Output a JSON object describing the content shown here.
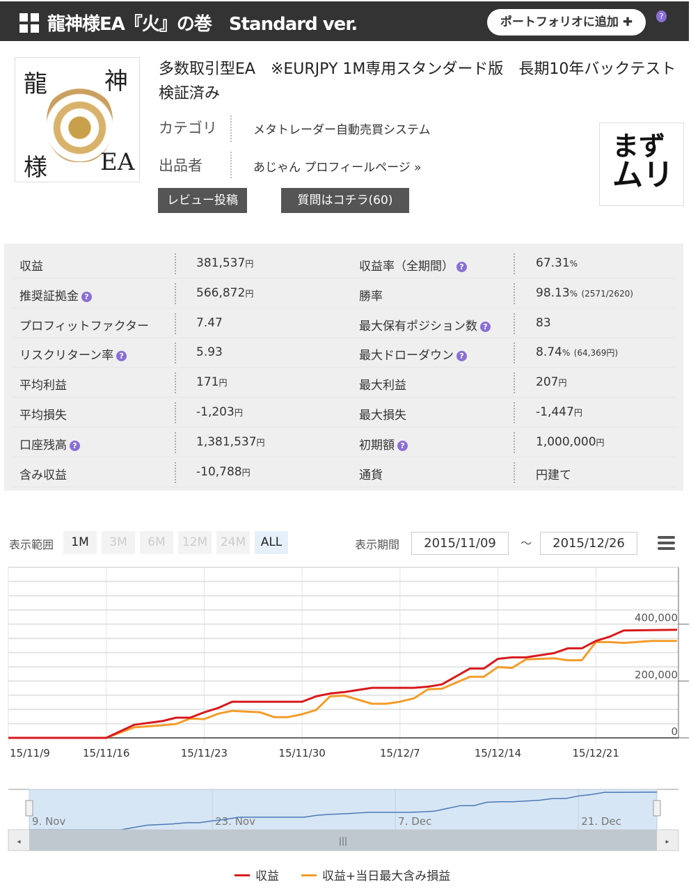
{
  "header": {
    "title": "龍神様EA『火』の巻　Standard ver.",
    "portfolio_button": "ポートフォリオに追加",
    "help": "?"
  },
  "product": {
    "logo_text": [
      "龍",
      "神",
      "様",
      "EA"
    ],
    "name": "多数取引型EA　※EURJPY 1M専用スタンダード版　長期10年バックテスト検証済み",
    "category_label": "カテゴリ",
    "category_value": "メタトレーダー自動売買システム",
    "seller_label": "出品者",
    "seller_value": "あじゃん プロフィールページ »",
    "review_button": "レビュー投稿",
    "question_button": "質問はコチラ(60)",
    "seller_avatar_text": [
      "まず",
      "ムリ"
    ]
  },
  "stats": [
    {
      "l": "収益",
      "lh": false,
      "v": "381,537",
      "vu": "円",
      "vx": "",
      "r": "収益率（全期間）",
      "rh": true,
      "rv": "67.31",
      "ru": "%",
      "rx": ""
    },
    {
      "l": "推奨証拠金",
      "lh": true,
      "v": "566,872",
      "vu": "円",
      "vx": "",
      "r": "勝率",
      "rh": false,
      "rv": "98.13",
      "ru": "%",
      "rx": "(2571/2620)"
    },
    {
      "l": "プロフィットファクター",
      "lh": false,
      "v": "7.47",
      "vu": "",
      "vx": "",
      "r": "最大保有ポジション数",
      "rh": true,
      "rv": "83",
      "ru": "",
      "rx": ""
    },
    {
      "l": "リスクリターン率",
      "lh": true,
      "v": "5.93",
      "vu": "",
      "vx": "",
      "r": "最大ドローダウン",
      "rh": true,
      "rv": "8.74",
      "ru": "%",
      "rx": "(64,369円)"
    },
    {
      "l": "平均利益",
      "lh": false,
      "v": "171",
      "vu": "円",
      "vx": "",
      "r": "最大利益",
      "rh": false,
      "rv": "207",
      "ru": "円",
      "rx": ""
    },
    {
      "l": "平均損失",
      "lh": false,
      "v": "-1,203",
      "vu": "円",
      "vx": "",
      "r": "最大損失",
      "rh": false,
      "rv": "-1,447",
      "ru": "円",
      "rx": ""
    },
    {
      "l": "口座残高",
      "lh": true,
      "v": "1,381,537",
      "vu": "円",
      "vx": "",
      "r": "初期額",
      "rh": true,
      "rv": "1,000,000",
      "ru": "円",
      "rx": ""
    },
    {
      "l": "含み収益",
      "lh": false,
      "v": "-10,788",
      "vu": "円",
      "vx": "",
      "r": "通貨",
      "rh": false,
      "rv": "円建て",
      "ru": "",
      "rx": ""
    }
  ],
  "chart_controls": {
    "range_label": "表示範囲",
    "ranges": [
      {
        "label": "1M",
        "enabled": true,
        "selected": false
      },
      {
        "label": "3M",
        "enabled": false,
        "selected": false
      },
      {
        "label": "6M",
        "enabled": false,
        "selected": false
      },
      {
        "label": "12M",
        "enabled": false,
        "selected": false
      },
      {
        "label": "24M",
        "enabled": false,
        "selected": false
      },
      {
        "label": "ALL",
        "enabled": true,
        "selected": true
      }
    ],
    "period_label": "表示期間",
    "from": "2015/11/09",
    "tilde": "～",
    "to": "2015/12/26"
  },
  "chart_data": {
    "type": "line",
    "xlim": [
      "2015-11-09",
      "2015-12-27"
    ],
    "ylim": [
      0,
      600000
    ],
    "grid": true,
    "x_ticks": [
      "15/11/9",
      "15/11/16",
      "15/11/23",
      "15/11/30",
      "15/12/7",
      "15/12/14",
      "15/12/21"
    ],
    "y_ticks": [
      {
        "v": 0,
        "label": "0"
      },
      {
        "v": 200000,
        "label": "200,000"
      },
      {
        "v": 400000,
        "label": "400,000"
      }
    ],
    "legend_position": "bottom",
    "series": [
      {
        "name": "収益",
        "color": "#d7191c",
        "points": [
          [
            "2015-11-09",
            0
          ],
          [
            "2015-11-16",
            0
          ],
          [
            "2015-11-18",
            46000
          ],
          [
            "2015-11-20",
            59000
          ],
          [
            "2015-11-21",
            71000
          ],
          [
            "2015-11-22",
            71000
          ],
          [
            "2015-11-23",
            90000
          ],
          [
            "2015-11-24",
            105000
          ],
          [
            "2015-11-25",
            127000
          ],
          [
            "2015-11-30",
            127000
          ],
          [
            "2015-12-01",
            146000
          ],
          [
            "2015-12-02",
            156000
          ],
          [
            "2015-12-03",
            161000
          ],
          [
            "2015-12-05",
            176000
          ],
          [
            "2015-12-08",
            176000
          ],
          [
            "2015-12-09",
            180000
          ],
          [
            "2015-12-10",
            188000
          ],
          [
            "2015-12-12",
            244000
          ],
          [
            "2015-12-13",
            244000
          ],
          [
            "2015-12-14",
            278000
          ],
          [
            "2015-12-15",
            283000
          ],
          [
            "2015-12-16",
            283000
          ],
          [
            "2015-12-18",
            298000
          ],
          [
            "2015-12-19",
            315000
          ],
          [
            "2015-12-20",
            315000
          ],
          [
            "2015-12-21",
            341000
          ],
          [
            "2015-12-22",
            356000
          ],
          [
            "2015-12-23",
            378000
          ],
          [
            "2015-12-27",
            380000
          ]
        ]
      },
      {
        "name": "収益+当日最大含み損益",
        "color": "#f39c2b",
        "points": [
          [
            "2015-11-09",
            0
          ],
          [
            "2015-11-16",
            0
          ],
          [
            "2015-11-18",
            37000
          ],
          [
            "2015-11-20",
            44000
          ],
          [
            "2015-11-21",
            49000
          ],
          [
            "2015-11-22",
            68000
          ],
          [
            "2015-11-23",
            66000
          ],
          [
            "2015-11-24",
            85000
          ],
          [
            "2015-11-25",
            95000
          ],
          [
            "2015-11-27",
            90000
          ],
          [
            "2015-11-28",
            73000
          ],
          [
            "2015-11-29",
            73000
          ],
          [
            "2015-11-30",
            83000
          ],
          [
            "2015-12-01",
            98000
          ],
          [
            "2015-12-02",
            146000
          ],
          [
            "2015-12-03",
            149000
          ],
          [
            "2015-12-05",
            120000
          ],
          [
            "2015-12-06",
            120000
          ],
          [
            "2015-12-07",
            127000
          ],
          [
            "2015-12-08",
            139000
          ],
          [
            "2015-12-09",
            171000
          ],
          [
            "2015-12-10",
            173000
          ],
          [
            "2015-12-12",
            215000
          ],
          [
            "2015-12-13",
            215000
          ],
          [
            "2015-12-14",
            249000
          ],
          [
            "2015-12-15",
            246000
          ],
          [
            "2015-12-16",
            276000
          ],
          [
            "2015-12-18",
            280000
          ],
          [
            "2015-12-19",
            273000
          ],
          [
            "2015-12-20",
            273000
          ],
          [
            "2015-12-21",
            337000
          ],
          [
            "2015-12-22",
            337000
          ],
          [
            "2015-12-23",
            334000
          ],
          [
            "2015-12-25",
            341000
          ],
          [
            "2015-12-27",
            341000
          ]
        ]
      }
    ],
    "navigator": {
      "ticks": [
        "9. Nov",
        "23. Nov",
        "7. Dec",
        "21. Dec"
      ],
      "color": "#4a7ab5"
    }
  }
}
